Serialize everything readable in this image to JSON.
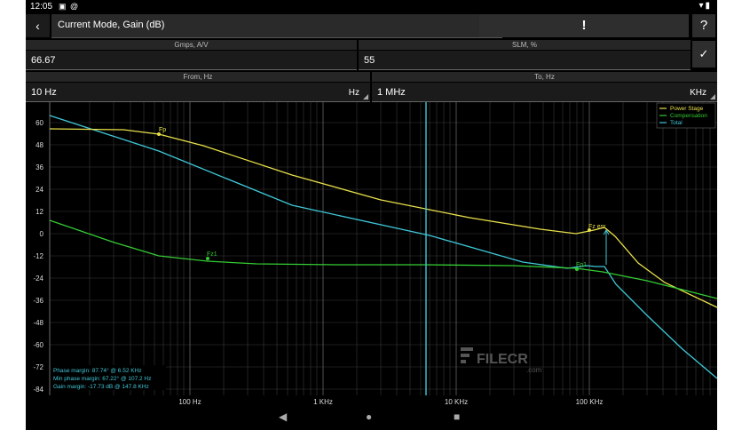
{
  "status_bar": {
    "time": "12:05",
    "left_icons": [
      "image-icon",
      "at-icon"
    ],
    "right_icons": [
      "wifi-icon",
      "battery-icon"
    ]
  },
  "toolbar": {
    "back_icon": "back-arrow-icon",
    "mode_value": "Current Mode, Gain (dB)",
    "warning_label": "!",
    "help_label": "?"
  },
  "params": {
    "gmps_label": "Gmps, A/V",
    "gmps_value": "66.67",
    "slm_label": "SLM, %",
    "slm_value": "55",
    "confirm_icon": "checkmark-icon"
  },
  "range": {
    "from_label": "From, Hz",
    "from_value": "10 Hz",
    "from_unit": "Hz",
    "to_label": "To, Hz",
    "to_value": "1 MHz",
    "to_unit": "KHz"
  },
  "plot": {
    "legend": [
      {
        "name": "Power Stage",
        "color": "#e8e04a"
      },
      {
        "name": "Compensation",
        "color": "#33cc33"
      },
      {
        "name": "Total",
        "color": "#3fc8d8"
      }
    ],
    "y_ticks": [
      "60",
      "48",
      "36",
      "24",
      "12",
      "0",
      "-12",
      "-24",
      "-36",
      "-48",
      "-60",
      "-72",
      "-84"
    ],
    "x_ticks": [
      "100 Hz",
      "1 KHz",
      "10 KHz",
      "100 KHz"
    ],
    "annotations": [
      "Fp",
      "Fz1",
      "Fp1",
      "Fz esr"
    ],
    "margins": [
      "Phase margin: 87.74° @ 6.52 KHz",
      "Min phase margin: 67.22° @ 107.2 Hz",
      "Gain margin: -17.73 dB @ 147.8 KHz"
    ],
    "watermark": "FILECR",
    "watermark_sub": ".com"
  },
  "navbar": {
    "back": "◀",
    "home": "●",
    "recents": "■"
  }
}
